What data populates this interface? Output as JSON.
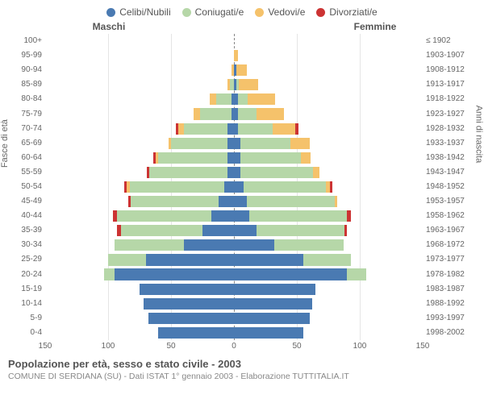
{
  "legend": [
    {
      "label": "Celibi/Nubili",
      "color": "#4a7ab2"
    },
    {
      "label": "Coniugati/e",
      "color": "#b6d7a8"
    },
    {
      "label": "Vedovi/e",
      "color": "#f5c26b"
    },
    {
      "label": "Divorziati/e",
      "color": "#cc3333"
    }
  ],
  "gender_labels": {
    "left": "Maschi",
    "right": "Femmine"
  },
  "yaxis_left_label": "Fasce di età",
  "yaxis_right_label": "Anni di nascita",
  "x": {
    "min": 0,
    "max": 150,
    "ticks": [
      150,
      100,
      50,
      0,
      50,
      100,
      150
    ]
  },
  "pyramid": {
    "age_labels": [
      "100+",
      "95-99",
      "90-94",
      "85-89",
      "80-84",
      "75-79",
      "70-74",
      "65-69",
      "60-64",
      "55-59",
      "50-54",
      "45-49",
      "40-44",
      "35-39",
      "30-34",
      "25-29",
      "20-24",
      "15-19",
      "10-14",
      "5-9",
      "0-4"
    ],
    "year_labels": [
      "≤ 1902",
      "1903-1907",
      "1908-1912",
      "1913-1917",
      "1918-1922",
      "1923-1927",
      "1928-1932",
      "1933-1937",
      "1938-1942",
      "1943-1947",
      "1948-1952",
      "1953-1957",
      "1958-1962",
      "1963-1967",
      "1968-1972",
      "1973-1977",
      "1978-1982",
      "1983-1987",
      "1988-1992",
      "1993-1997",
      "1998-2002"
    ],
    "male": [
      {
        "c": 0,
        "m": 0,
        "w": 0,
        "d": 0
      },
      {
        "c": 0,
        "m": 0,
        "w": 0,
        "d": 0
      },
      {
        "c": 0,
        "m": 0,
        "w": 2,
        "d": 0
      },
      {
        "c": 0,
        "m": 3,
        "w": 2,
        "d": 0
      },
      {
        "c": 2,
        "m": 12,
        "w": 5,
        "d": 0
      },
      {
        "c": 2,
        "m": 25,
        "w": 5,
        "d": 0
      },
      {
        "c": 5,
        "m": 35,
        "w": 4,
        "d": 2
      },
      {
        "c": 5,
        "m": 45,
        "w": 2,
        "d": 0
      },
      {
        "c": 5,
        "m": 55,
        "w": 2,
        "d": 2
      },
      {
        "c": 5,
        "m": 62,
        "w": 0,
        "d": 2
      },
      {
        "c": 8,
        "m": 75,
        "w": 2,
        "d": 2
      },
      {
        "c": 12,
        "m": 70,
        "w": 0,
        "d": 2
      },
      {
        "c": 18,
        "m": 75,
        "w": 0,
        "d": 3
      },
      {
        "c": 25,
        "m": 65,
        "w": 0,
        "d": 3
      },
      {
        "c": 40,
        "m": 55,
        "w": 0,
        "d": 0
      },
      {
        "c": 70,
        "m": 30,
        "w": 0,
        "d": 0
      },
      {
        "c": 95,
        "m": 8,
        "w": 0,
        "d": 0
      },
      {
        "c": 75,
        "m": 0,
        "w": 0,
        "d": 0
      },
      {
        "c": 72,
        "m": 0,
        "w": 0,
        "d": 0
      },
      {
        "c": 68,
        "m": 0,
        "w": 0,
        "d": 0
      },
      {
        "c": 60,
        "m": 0,
        "w": 0,
        "d": 0
      }
    ],
    "female": [
      {
        "c": 0,
        "m": 0,
        "w": 0,
        "d": 0
      },
      {
        "c": 0,
        "m": 0,
        "w": 3,
        "d": 0
      },
      {
        "c": 2,
        "m": 0,
        "w": 8,
        "d": 0
      },
      {
        "c": 2,
        "m": 2,
        "w": 15,
        "d": 0
      },
      {
        "c": 3,
        "m": 8,
        "w": 22,
        "d": 0
      },
      {
        "c": 3,
        "m": 15,
        "w": 22,
        "d": 0
      },
      {
        "c": 3,
        "m": 28,
        "w": 18,
        "d": 2
      },
      {
        "c": 5,
        "m": 40,
        "w": 15,
        "d": 0
      },
      {
        "c": 5,
        "m": 48,
        "w": 8,
        "d": 0
      },
      {
        "c": 5,
        "m": 58,
        "w": 5,
        "d": 0
      },
      {
        "c": 8,
        "m": 65,
        "w": 3,
        "d": 2
      },
      {
        "c": 10,
        "m": 70,
        "w": 2,
        "d": 0
      },
      {
        "c": 12,
        "m": 78,
        "w": 0,
        "d": 3
      },
      {
        "c": 18,
        "m": 70,
        "w": 0,
        "d": 2
      },
      {
        "c": 32,
        "m": 55,
        "w": 0,
        "d": 0
      },
      {
        "c": 55,
        "m": 38,
        "w": 0,
        "d": 0
      },
      {
        "c": 90,
        "m": 15,
        "w": 0,
        "d": 0
      },
      {
        "c": 65,
        "m": 0,
        "w": 0,
        "d": 0
      },
      {
        "c": 62,
        "m": 0,
        "w": 0,
        "d": 0
      },
      {
        "c": 60,
        "m": 0,
        "w": 0,
        "d": 0
      },
      {
        "c": 55,
        "m": 0,
        "w": 0,
        "d": 0
      }
    ]
  },
  "footer": {
    "title": "Popolazione per età, sesso e stato civile - 2003",
    "subtitle": "COMUNE DI SERDIANA (SU) - Dati ISTAT 1° gennaio 2003 - Elaborazione TUTTITALIA.IT"
  },
  "colors": {
    "bg": "#ffffff",
    "grid": "#e5e5e5",
    "zero": "#888888",
    "text": "#666666"
  }
}
